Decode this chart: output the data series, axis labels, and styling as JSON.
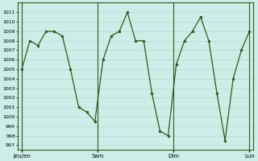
{
  "y_values": [
    1005,
    1008,
    1007.5,
    1009,
    1009,
    1008.5,
    1005,
    1001,
    1000.5,
    999.5,
    1006,
    1008.5,
    1009,
    1011,
    1008,
    1008,
    1002.5,
    998.5,
    998,
    1005.5,
    1008,
    1009,
    1010.5,
    1008,
    1002.5,
    997.5,
    1004,
    1007,
    1009
  ],
  "x_tick_labels": [
    "Jeu/en",
    "Sam",
    "Dim",
    "Lun"
  ],
  "ylim": [
    996.5,
    1012.0
  ],
  "ytick_min": 997,
  "ytick_max": 1011,
  "line_color": "#2d5a1b",
  "bg_color": "#cdeee8",
  "grid_color": "#a8d8cc"
}
